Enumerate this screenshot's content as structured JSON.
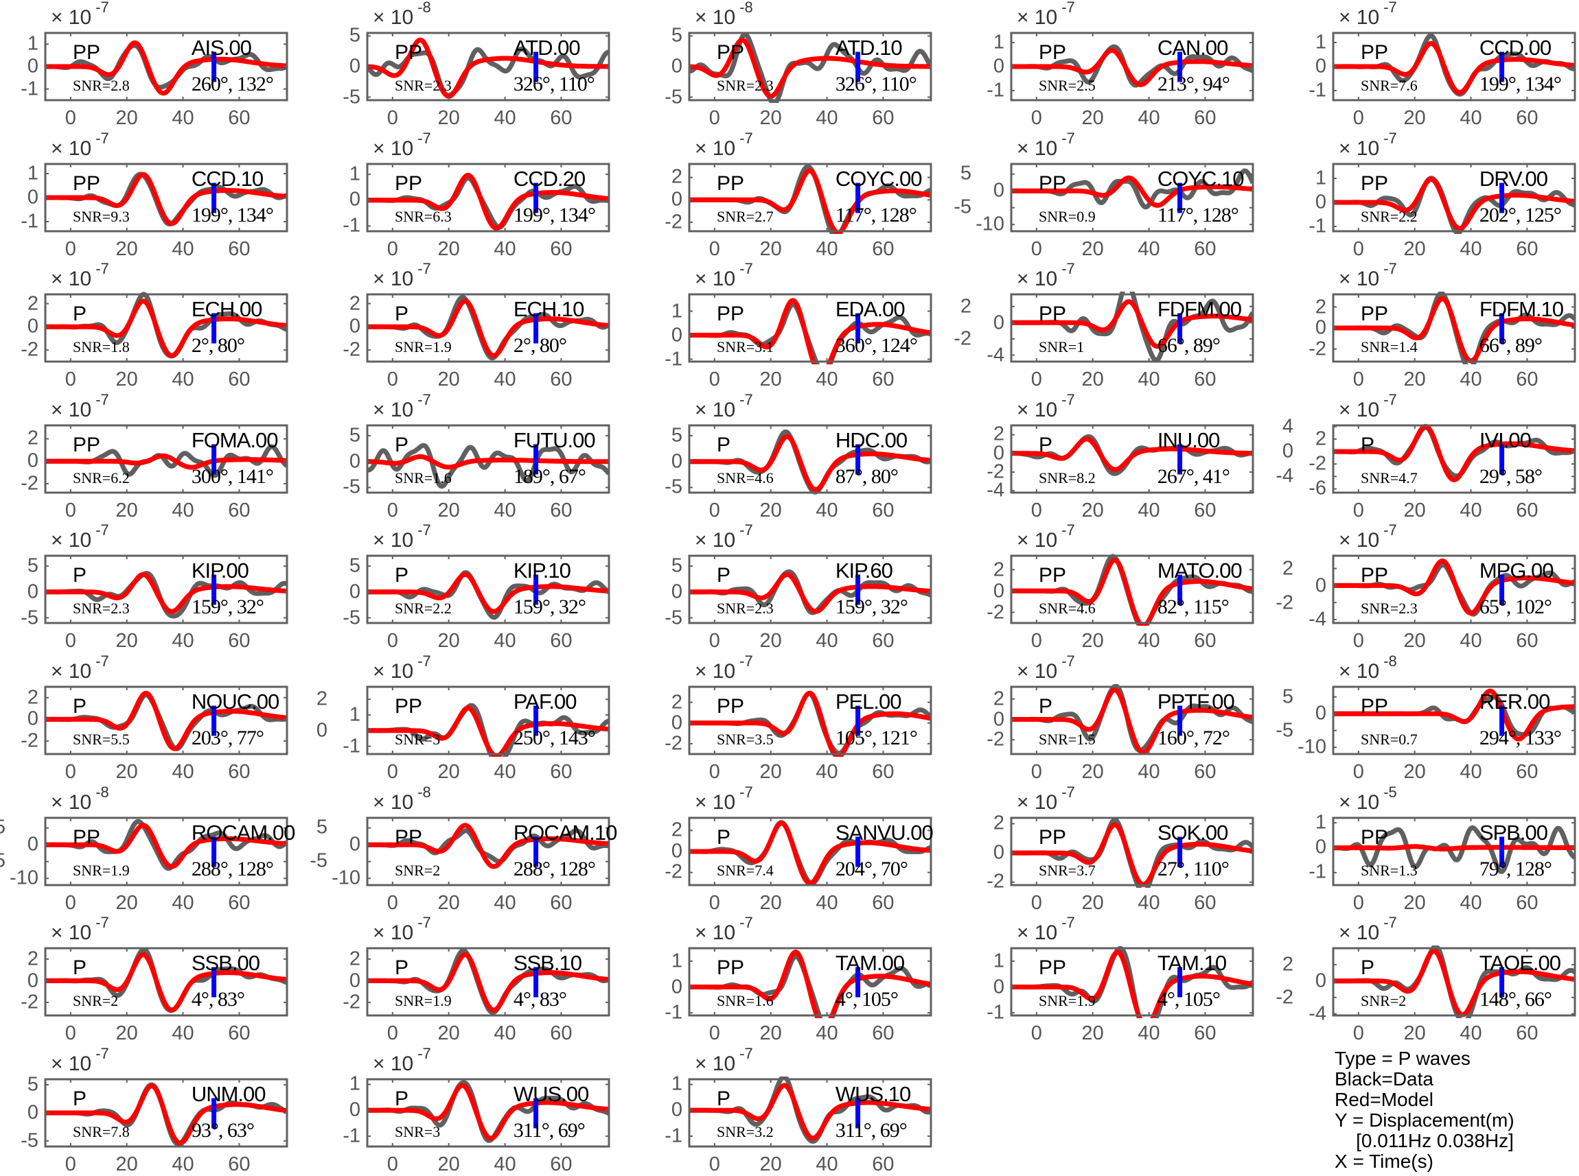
{
  "xaxis": {
    "ticks": [
      0,
      20,
      40,
      60
    ],
    "xlim": [
      -9,
      77
    ],
    "marker_time": 51
  },
  "colors": {
    "data": "#606060",
    "model": "#ff0000",
    "marker": "#0000ff",
    "axis": "#606060"
  },
  "multiplier_base": "× 10",
  "legend": {
    "lines": [
      "Type = P waves",
      "Black=Data",
      "Red=Model",
      "Y = Displacement(m)",
      "    [0.011Hz 0.038Hz]",
      "X = Time(s)"
    ]
  },
  "chart_data": {
    "type": "line",
    "title": "",
    "xlabel": "Time(s)",
    "ylabel": "Displacement(m)",
    "series_names": [
      "Data",
      "Model"
    ],
    "panels": [
      {
        "station": "AIS.00",
        "phase": "PP",
        "snr": "SNR=2.8",
        "azdist": "260°, 132°",
        "exp": -7,
        "yticks": [
          -1,
          0,
          1
        ],
        "ylim": [
          -1.5,
          1.5
        ],
        "t0": 23,
        "amp": 1.1,
        "noise": 0.35
      },
      {
        "station": "ATD.00",
        "phase": "PP",
        "snr": "SNR=2.3",
        "azdist": "326°, 110°",
        "exp": -8,
        "yticks": [
          -5,
          0,
          5
        ],
        "ylim": [
          -5.5,
          5.5
        ],
        "t0": 10,
        "amp": 4.5,
        "noise": 2.5
      },
      {
        "station": "ATD.10",
        "phase": "PP",
        "snr": "SNR=2.3",
        "azdist": "326°, 110°",
        "exp": -8,
        "yticks": [
          -5,
          0,
          5
        ],
        "ylim": [
          -5.5,
          5.5
        ],
        "t0": 10,
        "amp": 4.5,
        "noise": 2.5
      },
      {
        "station": "CAN.00",
        "phase": "PP",
        "snr": "SNR=2.5",
        "azdist": "213°, 94°",
        "exp": -7,
        "yticks": [
          -1,
          0,
          1
        ],
        "ylim": [
          -1.4,
          1.4
        ],
        "t0": 27,
        "amp": 0.7,
        "noise": 0.45
      },
      {
        "station": "CCD.00",
        "phase": "PP",
        "snr": "SNR=7.6",
        "azdist": "199°, 134°",
        "exp": -7,
        "yticks": [
          -1,
          0,
          1
        ],
        "ylim": [
          -1.4,
          1.4
        ],
        "t0": 26,
        "amp": 1.0,
        "noise": 0.3
      },
      {
        "station": "CCD.10",
        "phase": "PP",
        "snr": "SNR=9.3",
        "azdist": "199°, 134°",
        "exp": -7,
        "yticks": [
          -1,
          0,
          1
        ],
        "ylim": [
          -1.4,
          1.4
        ],
        "t0": 26,
        "amp": 1.0,
        "noise": 0.25
      },
      {
        "station": "CCD.20",
        "phase": "PP",
        "snr": "SNR=6.3",
        "azdist": "199°, 134°",
        "exp": -7,
        "yticks": [
          -1,
          0,
          1
        ],
        "ylim": [
          -1.2,
          1.4
        ],
        "t0": 27,
        "amp": 1.0,
        "noise": 0.3
      },
      {
        "station": "COYC.00",
        "phase": "PP",
        "snr": "SNR=2.7",
        "azdist": "117°, 128°",
        "exp": -7,
        "yticks": [
          -2,
          0,
          2
        ],
        "ylim": [
          -2.8,
          3.2
        ],
        "t0": 34,
        "amp": 2.7,
        "noise": 0.6
      },
      {
        "station": "COYC.10",
        "phase": "PP",
        "snr": "SNR=0.9",
        "azdist": "117°, 128°",
        "exp": -7,
        "yticks": [
          -10,
          -5,
          0,
          5
        ],
        "ylim": [
          -12,
          8
        ],
        "t0": 33,
        "amp": 4,
        "noise": 5
      },
      {
        "station": "DRV.00",
        "phase": "PP",
        "snr": "SNR=2.2",
        "azdist": "202°, 125°",
        "exp": -7,
        "yticks": [
          -1,
          0,
          1
        ],
        "ylim": [
          -1.2,
          1.6
        ],
        "t0": 26,
        "amp": 1.0,
        "noise": 0.4
      },
      {
        "station": "ECH.00",
        "phase": "P",
        "snr": "SNR=1.8",
        "azdist": "2°, 80°",
        "exp": -7,
        "yticks": [
          -2,
          0,
          2
        ],
        "ylim": [
          -3,
          2.8
        ],
        "t0": 26,
        "amp": 2.3,
        "noise": 0.6
      },
      {
        "station": "ECH.10",
        "phase": "P",
        "snr": "SNR=1.9",
        "azdist": "2°, 80°",
        "exp": -7,
        "yticks": [
          -2,
          0,
          2
        ],
        "ylim": [
          -3,
          2.8
        ],
        "t0": 26,
        "amp": 2.3,
        "noise": 0.6
      },
      {
        "station": "EDA.00",
        "phase": "PP",
        "snr": "SNR=3.1",
        "azdist": "360°, 124°",
        "exp": -7,
        "yticks": [
          -1,
          0,
          1
        ],
        "ylim": [
          -1.1,
          1.7
        ],
        "t0": 28,
        "amp": 1.5,
        "noise": 0.4
      },
      {
        "station": "FDFM.00",
        "phase": "PP",
        "snr": "SNR=1",
        "azdist": "66°, 89°",
        "exp": -7,
        "yticks": [
          -4,
          -2,
          0,
          2
        ],
        "ylim": [
          -4.8,
          3.5
        ],
        "t0": 33,
        "amp": 2.7,
        "noise": 2.2
      },
      {
        "station": "FDFM.10",
        "phase": "PP",
        "snr": "SNR=1.4",
        "azdist": "66°, 89°",
        "exp": -7,
        "yticks": [
          -2,
          0,
          2
        ],
        "ylim": [
          -3.2,
          3.2
        ],
        "t0": 30,
        "amp": 2.9,
        "noise": 0.8
      },
      {
        "station": "FOMA.00",
        "phase": "PP",
        "snr": "SNR=6.2",
        "azdist": "300°, 141°",
        "exp": -7,
        "yticks": [
          -2,
          0,
          2
        ],
        "ylim": [
          -2.8,
          3.2
        ],
        "t0": 33,
        "amp": 0.5,
        "noise": 1.4
      },
      {
        "station": "FUTU.00",
        "phase": "P",
        "snr": "SNR=1.6",
        "azdist": "189°, 67°",
        "exp": -7,
        "yticks": [
          -5,
          0,
          5
        ],
        "ylim": [
          -6,
          7
        ],
        "t0": 10,
        "amp": 1.0,
        "noise": 4
      },
      {
        "station": "HDC.00",
        "phase": "P",
        "snr": "SNR=4.6",
        "azdist": "87°, 80°",
        "exp": -7,
        "yticks": [
          -5,
          0,
          5
        ],
        "ylim": [
          -6,
          7
        ],
        "t0": 26,
        "amp": 5,
        "noise": 1
      },
      {
        "station": "INU.00",
        "phase": "P",
        "snr": "SNR=8.2",
        "azdist": "267°, 41°",
        "exp": -7,
        "yticks": [
          -4,
          -2,
          0,
          2
        ],
        "ylim": [
          -4.2,
          3
        ],
        "t0": 18,
        "amp": 1.6,
        "noise": 0.5
      },
      {
        "station": "IVI.00",
        "phase": "P",
        "snr": "SNR=4.7",
        "azdist": "29°, 58°",
        "exp": -7,
        "yticks": [
          -6,
          -4,
          -2,
          0,
          2,
          4
        ],
        "ylim": [
          -6.6,
          4.2
        ],
        "t0": 24,
        "amp": 4.2,
        "noise": 1
      },
      {
        "station": "KIP.00",
        "phase": "P",
        "snr": "SNR=2.3",
        "azdist": "159°, 32°",
        "exp": -7,
        "yticks": [
          -5,
          0,
          5
        ],
        "ylim": [
          -6,
          7
        ],
        "t0": 26,
        "amp": 3.5,
        "noise": 1.5
      },
      {
        "station": "KIP.10",
        "phase": "P",
        "snr": "SNR=2.2",
        "azdist": "159°, 32°",
        "exp": -7,
        "yticks": [
          -5,
          0,
          5
        ],
        "ylim": [
          -6,
          7
        ],
        "t0": 26,
        "amp": 3.5,
        "noise": 1.5
      },
      {
        "station": "KIP.60",
        "phase": "P",
        "snr": "SNR=2.3",
        "azdist": "159°, 32°",
        "exp": -7,
        "yticks": [
          -5,
          0,
          5
        ],
        "ylim": [
          -6,
          7
        ],
        "t0": 26,
        "amp": 3.5,
        "noise": 1.5
      },
      {
        "station": "MATO.00",
        "phase": "PP",
        "snr": "SNR=4.6",
        "azdist": "82°, 115°",
        "exp": -7,
        "yticks": [
          -2,
          0,
          2
        ],
        "ylim": [
          -3,
          3.3
        ],
        "t0": 28,
        "amp": 3,
        "noise": 0.6
      },
      {
        "station": "MPG.00",
        "phase": "PP",
        "snr": "SNR=2.3",
        "azdist": "65°, 102°",
        "exp": -7,
        "yticks": [
          -4,
          -2,
          0,
          2
        ],
        "ylim": [
          -4.4,
          3.5
        ],
        "t0": 30,
        "amp": 3,
        "noise": 1
      },
      {
        "station": "NOUC.00",
        "phase": "P",
        "snr": "SNR=5.5",
        "azdist": "203°, 77°",
        "exp": -7,
        "yticks": [
          -2,
          0,
          2
        ],
        "ylim": [
          -3.2,
          3
        ],
        "t0": 27,
        "amp": 2.5,
        "noise": 0.6
      },
      {
        "station": "PAF.00",
        "phase": "PP",
        "snr": "SNR=3",
        "azdist": "250°, 143°",
        "exp": -7,
        "yticks": [
          -1,
          0,
          1,
          2
        ],
        "ylim": [
          -1.5,
          2.8
        ],
        "t0": 27,
        "amp": 1.5,
        "noise": 0.6
      },
      {
        "station": "PEL.00",
        "phase": "PP",
        "snr": "SNR=3.5",
        "azdist": "105°, 121°",
        "exp": -7,
        "yticks": [
          -2,
          0,
          2
        ],
        "ylim": [
          -3,
          3.5
        ],
        "t0": 34,
        "amp": 3,
        "noise": 0.6
      },
      {
        "station": "PPTF.00",
        "phase": "P",
        "snr": "SNR=1.5",
        "azdist": "160°, 72°",
        "exp": -7,
        "yticks": [
          -2,
          0,
          2
        ],
        "ylim": [
          -3.4,
          3.2
        ],
        "t0": 28,
        "amp": 3,
        "noise": 1
      },
      {
        "station": "RER.00",
        "phase": "PP",
        "snr": "SNR=0.7",
        "azdist": "294°, 133°",
        "exp": -8,
        "yticks": [
          -10,
          -5,
          0,
          5
        ],
        "ylim": [
          -12,
          8
        ],
        "t0": 47,
        "amp": 7,
        "noise": 3
      },
      {
        "station": "ROCAM.00",
        "phase": "PP",
        "snr": "SNR=1.9",
        "azdist": "288°, 128°",
        "exp": -8,
        "yticks": [
          -10,
          -5,
          0,
          5
        ],
        "ylim": [
          -12,
          8
        ],
        "t0": 26,
        "amp": 6,
        "noise": 3
      },
      {
        "station": "ROCAM.10",
        "phase": "PP",
        "snr": "SNR=2",
        "azdist": "288°, 128°",
        "exp": -8,
        "yticks": [
          -10,
          -5,
          0,
          5
        ],
        "ylim": [
          -12,
          8
        ],
        "t0": 26,
        "amp": 6,
        "noise": 3
      },
      {
        "station": "SANVU.00",
        "phase": "P",
        "snr": "SNR=7.4",
        "azdist": "204°, 70°",
        "exp": -7,
        "yticks": [
          -2,
          0,
          2
        ],
        "ylim": [
          -3.2,
          3.2
        ],
        "t0": 24,
        "amp": 2.8,
        "noise": 0.5
      },
      {
        "station": "SOK.00",
        "phase": "PP",
        "snr": "SNR=3.7",
        "azdist": "27°, 110°",
        "exp": -7,
        "yticks": [
          -2,
          0,
          2
        ],
        "ylim": [
          -2.2,
          2.4
        ],
        "t0": 28,
        "amp": 2,
        "noise": 0.5
      },
      {
        "station": "SPB.00",
        "phase": "PP",
        "snr": "SNR=1.3",
        "azdist": "79°, 128°",
        "exp": -5,
        "yticks": [
          -1,
          0,
          1
        ],
        "ylim": [
          -1.5,
          1.2
        ],
        "t0": 20,
        "amp": 0.05,
        "noise": 1
      },
      {
        "station": "SSB.00",
        "phase": "P",
        "snr": "SNR=2",
        "azdist": "4°, 83°",
        "exp": -7,
        "yticks": [
          -2,
          0,
          2
        ],
        "ylim": [
          -3.2,
          3
        ],
        "t0": 26,
        "amp": 2.5,
        "noise": 0.5
      },
      {
        "station": "SSB.10",
        "phase": "P",
        "snr": "SNR=1.9",
        "azdist": "4°, 83°",
        "exp": -7,
        "yticks": [
          -2,
          0,
          2
        ],
        "ylim": [
          -3.2,
          3
        ],
        "t0": 26,
        "amp": 2.5,
        "noise": 0.5
      },
      {
        "station": "TAM.00",
        "phase": "PP",
        "snr": "SNR=1.6",
        "azdist": "4°, 105°",
        "exp": -7,
        "yticks": [
          -1,
          0,
          1
        ],
        "ylim": [
          -1.1,
          1.5
        ],
        "t0": 29,
        "amp": 1.4,
        "noise": 0.4
      },
      {
        "station": "TAM.10",
        "phase": "PP",
        "snr": "SNR=1.9",
        "azdist": "4°, 105°",
        "exp": -7,
        "yticks": [
          -1,
          0,
          1
        ],
        "ylim": [
          -1.1,
          1.5
        ],
        "t0": 29,
        "amp": 1.4,
        "noise": 0.4
      },
      {
        "station": "TAOE.00",
        "phase": "P",
        "snr": "SNR=2",
        "azdist": "148°, 66°",
        "exp": -7,
        "yticks": [
          -4,
          -2,
          0,
          2
        ],
        "ylim": [
          -4.2,
          4
        ],
        "t0": 27,
        "amp": 3.8,
        "noise": 1
      },
      {
        "station": "UNM.00",
        "phase": "P",
        "snr": "SNR=7.8",
        "azdist": "93°, 63°",
        "exp": -7,
        "yticks": [
          -5,
          0,
          5
        ],
        "ylim": [
          -6,
          6
        ],
        "t0": 29,
        "amp": 5,
        "noise": 0.8
      },
      {
        "station": "WUS.00",
        "phase": "P",
        "snr": "SNR=3",
        "azdist": "311°, 69°",
        "exp": -7,
        "yticks": [
          -1,
          0,
          1
        ],
        "ylim": [
          -1.4,
          1.2
        ],
        "t0": 25,
        "amp": 1.0,
        "noise": 0.3
      },
      {
        "station": "WUS.10",
        "phase": "P",
        "snr": "SNR=3.2",
        "azdist": "311°, 69°",
        "exp": -7,
        "yticks": [
          -1,
          0,
          1
        ],
        "ylim": [
          -1.4,
          1.2
        ],
        "t0": 25,
        "amp": 1.0,
        "noise": 0.3
      }
    ]
  }
}
